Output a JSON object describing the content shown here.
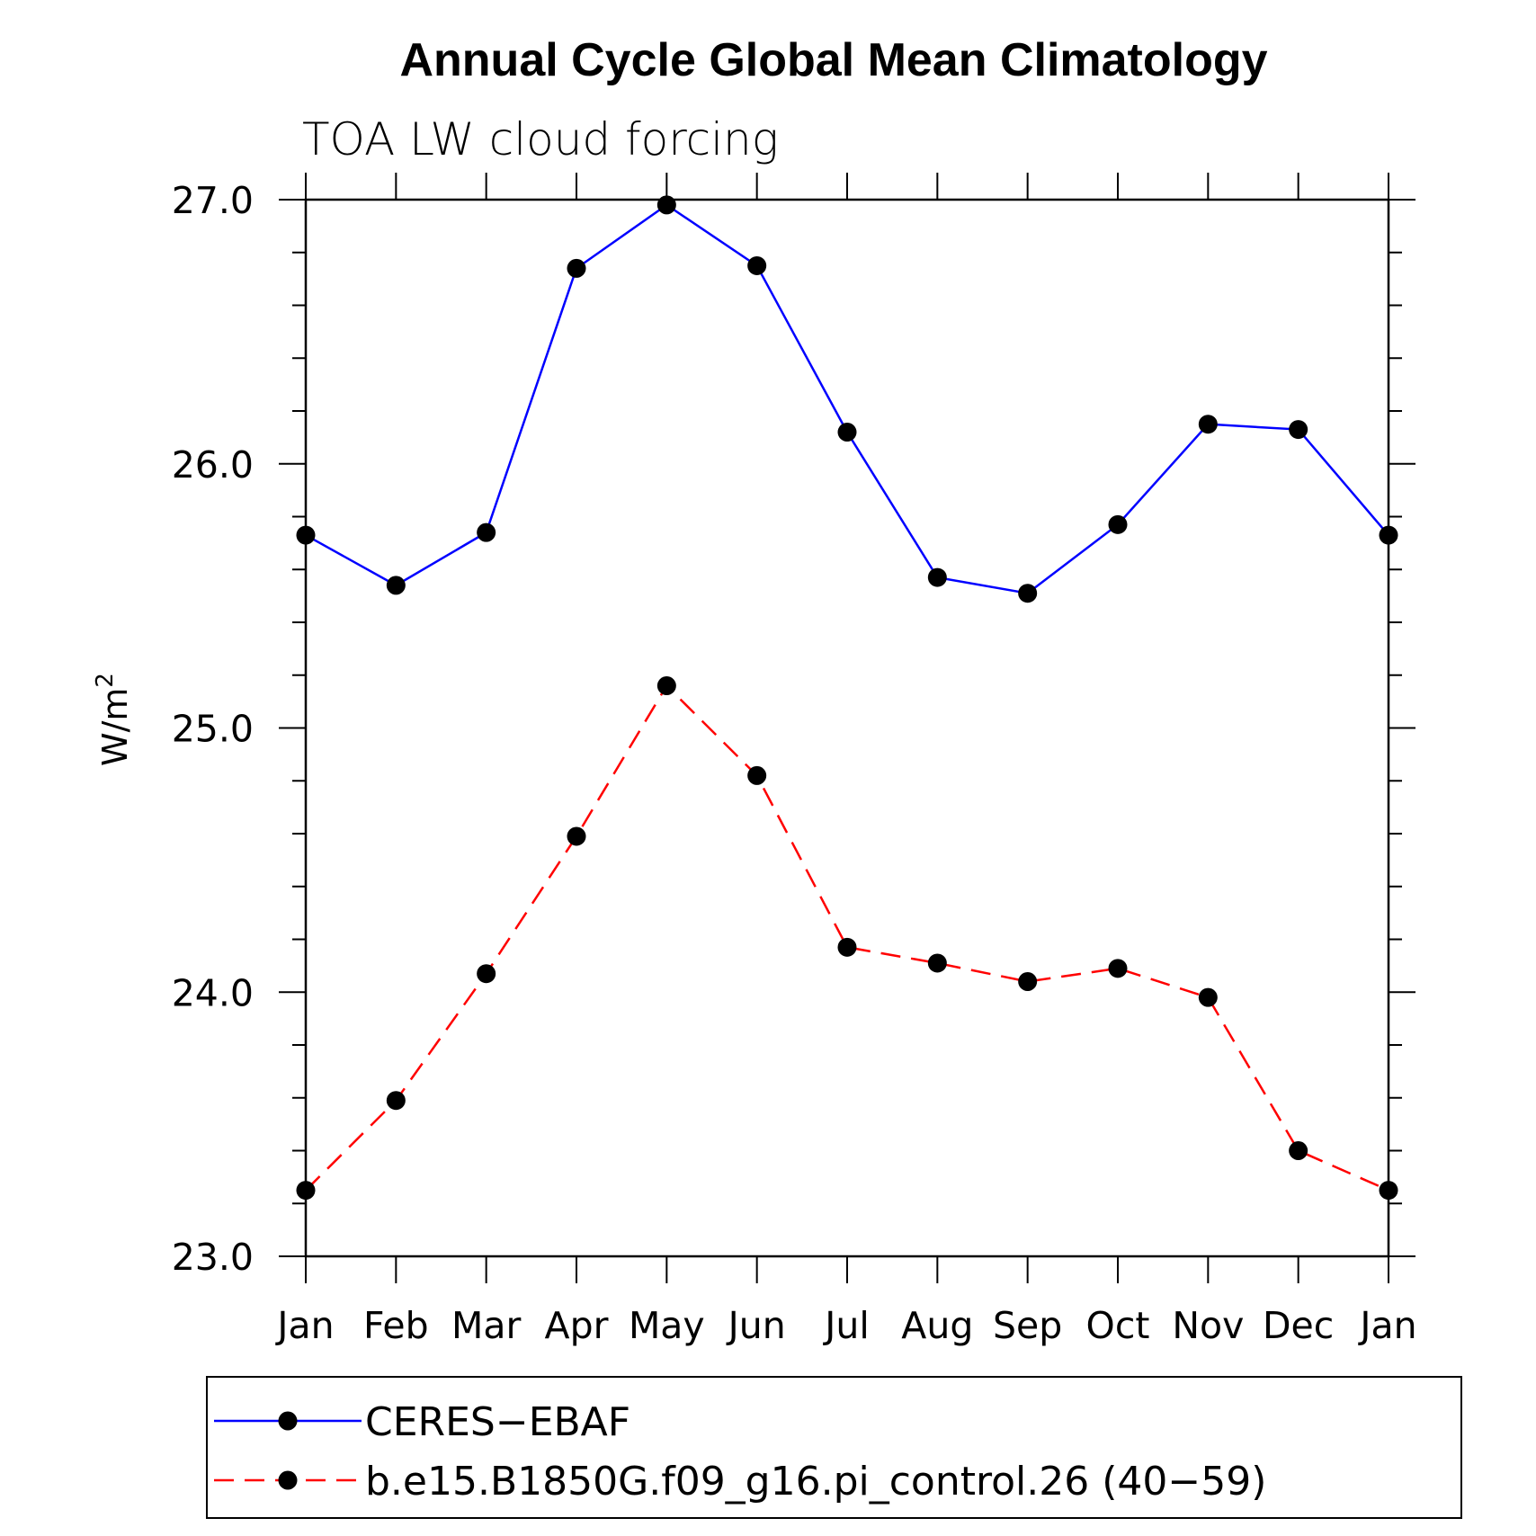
{
  "chart_data": {
    "type": "line",
    "title": "Annual Cycle Global Mean Climatology",
    "subtitle": "TOA LW cloud forcing",
    "ylabel_main": "W/m",
    "ylabel_sup": "2",
    "categories": [
      "Jan",
      "Feb",
      "Mar",
      "Apr",
      "May",
      "Jun",
      "Jul",
      "Aug",
      "Sep",
      "Oct",
      "Nov",
      "Dec",
      "Jan"
    ],
    "ylim": [
      23.0,
      27.0
    ],
    "yticks": [
      "23.0",
      "24.0",
      "25.0",
      "26.0",
      "27.0"
    ],
    "series": [
      {
        "name": "CERES−EBAF",
        "color": "#0000ff",
        "dash": "solid",
        "values": [
          25.73,
          25.54,
          25.74,
          26.74,
          26.98,
          26.75,
          26.12,
          25.57,
          25.51,
          25.77,
          26.15,
          26.13,
          25.73
        ]
      },
      {
        "name": "b.e15.B1850G.f09_g16.pi_control.26 (40−59)",
        "color": "#ff0000",
        "dash": "dashed",
        "values": [
          23.25,
          23.59,
          24.07,
          24.59,
          25.16,
          24.82,
          24.17,
          24.11,
          24.04,
          24.09,
          23.98,
          23.4,
          23.25
        ]
      }
    ],
    "marker_color": "#000000",
    "legend_placement": "bottom"
  }
}
